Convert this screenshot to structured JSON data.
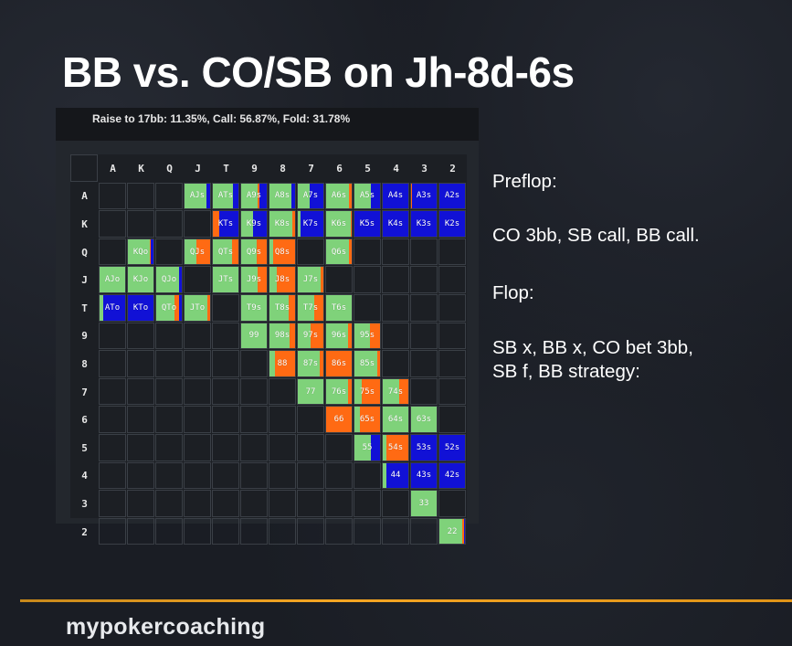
{
  "slide_title": "BB vs. CO/SB on Jh-8d-6s",
  "strategy_header": "Raise to 17bb: 11.35%, Call: 56.87%, Fold: 31.78%",
  "ranks": [
    "A",
    "K",
    "Q",
    "J",
    "T",
    "9",
    "8",
    "7",
    "6",
    "5",
    "4",
    "3",
    "2"
  ],
  "colors": {
    "call": "#7fd27a",
    "raise": "#ff6a13",
    "fold": "#1111d6"
  },
  "matrix_cells": [
    {
      "label": "AJs",
      "row": 0,
      "col": 3,
      "call": 0.85,
      "raise": 0,
      "fold": 0.15
    },
    {
      "label": "ATs",
      "row": 0,
      "col": 4,
      "call": 0.8,
      "raise": 0,
      "fold": 0.2
    },
    {
      "label": "A9s",
      "row": 0,
      "col": 5,
      "call": 0.65,
      "raise": 0.05,
      "fold": 0.3
    },
    {
      "label": "A8s",
      "row": 0,
      "col": 6,
      "call": 0.85,
      "raise": 0,
      "fold": 0.15
    },
    {
      "label": "A7s",
      "row": 0,
      "col": 7,
      "call": 0.45,
      "raise": 0,
      "fold": 0.55
    },
    {
      "label": "A6s",
      "row": 0,
      "col": 8,
      "call": 0.9,
      "raise": 0.1,
      "fold": 0
    },
    {
      "label": "A5s",
      "row": 0,
      "col": 9,
      "call": 0.65,
      "raise": 0,
      "fold": 0.35
    },
    {
      "label": "A4s",
      "row": 0,
      "col": 10,
      "call": 0,
      "raise": 0,
      "fold": 1
    },
    {
      "label": "A3s",
      "row": 0,
      "col": 11,
      "call": 0,
      "raise": 0.05,
      "fold": 0.95
    },
    {
      "label": "A2s",
      "row": 0,
      "col": 12,
      "call": 0,
      "raise": 0,
      "fold": 1
    },
    {
      "label": "KTs",
      "row": 1,
      "col": 4,
      "call": 0,
      "raise": 0.25,
      "fold": 0.75
    },
    {
      "label": "K9s",
      "row": 1,
      "col": 5,
      "call": 0.45,
      "raise": 0,
      "fold": 0.55
    },
    {
      "label": "K8s",
      "row": 1,
      "col": 6,
      "call": 0.9,
      "raise": 0.1,
      "fold": 0
    },
    {
      "label": "K7s",
      "row": 1,
      "col": 7,
      "call": 0.1,
      "raise": 0,
      "fold": 0.9
    },
    {
      "label": "K6s",
      "row": 1,
      "col": 8,
      "call": 0.95,
      "raise": 0.05,
      "fold": 0
    },
    {
      "label": "K5s",
      "row": 1,
      "col": 9,
      "call": 0,
      "raise": 0,
      "fold": 1
    },
    {
      "label": "K4s",
      "row": 1,
      "col": 10,
      "call": 0,
      "raise": 0,
      "fold": 1
    },
    {
      "label": "K3s",
      "row": 1,
      "col": 11,
      "call": 0,
      "raise": 0,
      "fold": 1
    },
    {
      "label": "K2s",
      "row": 1,
      "col": 12,
      "call": 0,
      "raise": 0,
      "fold": 1
    },
    {
      "label": "KQo",
      "row": 2,
      "col": 1,
      "call": 0.85,
      "raise": 0.05,
      "fold": 0.1
    },
    {
      "label": "QJs",
      "row": 2,
      "col": 3,
      "call": 0.45,
      "raise": 0.55,
      "fold": 0
    },
    {
      "label": "QTs",
      "row": 2,
      "col": 4,
      "call": 0.75,
      "raise": 0.25,
      "fold": 0
    },
    {
      "label": "Q9s",
      "row": 2,
      "col": 5,
      "call": 0.6,
      "raise": 0.4,
      "fold": 0
    },
    {
      "label": "Q8s",
      "row": 2,
      "col": 6,
      "call": 0.15,
      "raise": 0.85,
      "fold": 0
    },
    {
      "label": "Q6s",
      "row": 2,
      "col": 8,
      "call": 0.9,
      "raise": 0.1,
      "fold": 0
    },
    {
      "label": "AJo",
      "row": 3,
      "col": 0,
      "call": 1,
      "raise": 0,
      "fold": 0
    },
    {
      "label": "KJo",
      "row": 3,
      "col": 1,
      "call": 1,
      "raise": 0,
      "fold": 0
    },
    {
      "label": "QJo",
      "row": 3,
      "col": 2,
      "call": 0.9,
      "raise": 0,
      "fold": 0.1
    },
    {
      "label": "JTs",
      "row": 3,
      "col": 4,
      "call": 1,
      "raise": 0,
      "fold": 0
    },
    {
      "label": "J9s",
      "row": 3,
      "col": 5,
      "call": 0.65,
      "raise": 0.35,
      "fold": 0
    },
    {
      "label": "J8s",
      "row": 3,
      "col": 6,
      "call": 0.3,
      "raise": 0.7,
      "fold": 0
    },
    {
      "label": "J7s",
      "row": 3,
      "col": 7,
      "call": 0.9,
      "raise": 0.1,
      "fold": 0
    },
    {
      "label": "ATo",
      "row": 4,
      "col": 0,
      "call": 0.15,
      "raise": 0,
      "fold": 0.85
    },
    {
      "label": "KTo",
      "row": 4,
      "col": 1,
      "call": 0,
      "raise": 0,
      "fold": 1
    },
    {
      "label": "QTo",
      "row": 4,
      "col": 2,
      "call": 0.7,
      "raise": 0.2,
      "fold": 0.1
    },
    {
      "label": "JTo",
      "row": 4,
      "col": 3,
      "call": 0.9,
      "raise": 0.1,
      "fold": 0
    },
    {
      "label": "T9s",
      "row": 4,
      "col": 5,
      "call": 1,
      "raise": 0,
      "fold": 0
    },
    {
      "label": "T8s",
      "row": 4,
      "col": 6,
      "call": 0.75,
      "raise": 0.25,
      "fold": 0
    },
    {
      "label": "T7s",
      "row": 4,
      "col": 7,
      "call": 0.65,
      "raise": 0.35,
      "fold": 0
    },
    {
      "label": "T6s",
      "row": 4,
      "col": 8,
      "call": 1,
      "raise": 0,
      "fold": 0
    },
    {
      "label": "99",
      "row": 5,
      "col": 5,
      "call": 1,
      "raise": 0,
      "fold": 0
    },
    {
      "label": "98s",
      "row": 5,
      "col": 6,
      "call": 0.8,
      "raise": 0.2,
      "fold": 0
    },
    {
      "label": "97s",
      "row": 5,
      "col": 7,
      "call": 0.5,
      "raise": 0.5,
      "fold": 0
    },
    {
      "label": "96s",
      "row": 5,
      "col": 8,
      "call": 0.85,
      "raise": 0.15,
      "fold": 0
    },
    {
      "label": "95s",
      "row": 5,
      "col": 9,
      "call": 0.6,
      "raise": 0.4,
      "fold": 0
    },
    {
      "label": "88",
      "row": 6,
      "col": 6,
      "call": 0.2,
      "raise": 0.8,
      "fold": 0
    },
    {
      "label": "87s",
      "row": 6,
      "col": 7,
      "call": 0.85,
      "raise": 0.15,
      "fold": 0
    },
    {
      "label": "86s",
      "row": 6,
      "col": 8,
      "call": 0,
      "raise": 1,
      "fold": 0
    },
    {
      "label": "85s",
      "row": 6,
      "col": 9,
      "call": 0.9,
      "raise": 0.1,
      "fold": 0
    },
    {
      "label": "77",
      "row": 7,
      "col": 7,
      "call": 1,
      "raise": 0,
      "fold": 0
    },
    {
      "label": "76s",
      "row": 7,
      "col": 8,
      "call": 0.85,
      "raise": 0.15,
      "fold": 0
    },
    {
      "label": "75s",
      "row": 7,
      "col": 9,
      "call": 0.3,
      "raise": 0.7,
      "fold": 0
    },
    {
      "label": "74s",
      "row": 7,
      "col": 10,
      "call": 0.65,
      "raise": 0.35,
      "fold": 0
    },
    {
      "label": "66",
      "row": 8,
      "col": 8,
      "call": 0,
      "raise": 1,
      "fold": 0
    },
    {
      "label": "65s",
      "row": 8,
      "col": 9,
      "call": 0.2,
      "raise": 0.8,
      "fold": 0
    },
    {
      "label": "64s",
      "row": 8,
      "col": 10,
      "call": 1,
      "raise": 0,
      "fold": 0
    },
    {
      "label": "63s",
      "row": 8,
      "col": 11,
      "call": 1,
      "raise": 0,
      "fold": 0
    },
    {
      "label": "55",
      "row": 9,
      "col": 9,
      "call": 0.65,
      "raise": 0,
      "fold": 0.35
    },
    {
      "label": "54s",
      "row": 9,
      "col": 10,
      "call": 0.15,
      "raise": 0.85,
      "fold": 0
    },
    {
      "label": "53s",
      "row": 9,
      "col": 11,
      "call": 0,
      "raise": 0,
      "fold": 1
    },
    {
      "label": "52s",
      "row": 9,
      "col": 12,
      "call": 0,
      "raise": 0,
      "fold": 1
    },
    {
      "label": "44",
      "row": 10,
      "col": 10,
      "call": 0.15,
      "raise": 0,
      "fold": 0.85
    },
    {
      "label": "43s",
      "row": 10,
      "col": 11,
      "call": 0,
      "raise": 0,
      "fold": 1
    },
    {
      "label": "42s",
      "row": 10,
      "col": 12,
      "call": 0,
      "raise": 0,
      "fold": 1
    },
    {
      "label": "33",
      "row": 11,
      "col": 11,
      "call": 1,
      "raise": 0,
      "fold": 0
    },
    {
      "label": "22",
      "row": 12,
      "col": 12,
      "call": 0.9,
      "raise": 0.05,
      "fold": 0.05
    }
  ],
  "notes": {
    "preflop_heading": "Preflop:",
    "preflop_action": "CO 3bb, SB call, BB call.",
    "flop_heading": "Flop:",
    "flop_action_line1": "SB x, BB x, CO bet 3bb,",
    "flop_action_line2": "SB f, BB strategy:"
  },
  "brand": "mypokercoaching"
}
